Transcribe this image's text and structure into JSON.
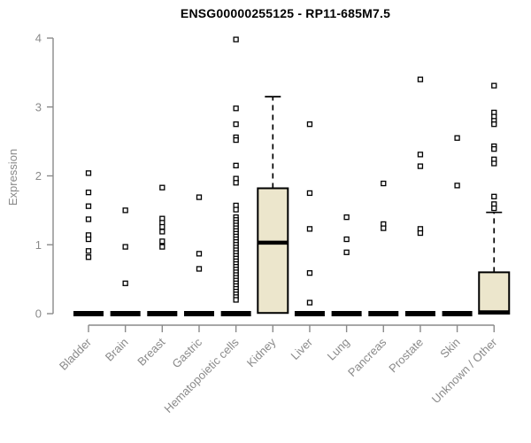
{
  "title": "ENSG00000255125 - RP11-685M7.5",
  "chart_data": {
    "type": "boxplot",
    "title": "ENSG00000255125 - RP11-685M7.5",
    "xlabel": "",
    "ylabel": "Expression",
    "ylim": [
      0,
      4
    ],
    "yticks": [
      0,
      1,
      2,
      3,
      4
    ],
    "grid": false,
    "legend": "none",
    "categories": [
      "Bladder",
      "Brain",
      "Breast",
      "Gastric",
      "Hematopoietic cells",
      "Kidney",
      "Liver",
      "Lung",
      "Pancreas",
      "Prostate",
      "Skin",
      "Unknown / Other"
    ],
    "boxes": [
      {
        "category": "Bladder",
        "whisker_low": 0,
        "q1": 0,
        "median": 0,
        "q3": 0,
        "whisker_high": 0
      },
      {
        "category": "Brain",
        "whisker_low": 0,
        "q1": 0,
        "median": 0,
        "q3": 0,
        "whisker_high": 0
      },
      {
        "category": "Breast",
        "whisker_low": 0,
        "q1": 0,
        "median": 0,
        "q3": 0,
        "whisker_high": 0
      },
      {
        "category": "Gastric",
        "whisker_low": 0,
        "q1": 0,
        "median": 0,
        "q3": 0,
        "whisker_high": 0
      },
      {
        "category": "Hematopoietic cells",
        "whisker_low": 0,
        "q1": 0,
        "median": 0,
        "q3": 0,
        "whisker_high": 0
      },
      {
        "category": "Kidney",
        "whisker_low": 0.01,
        "q1": 0.01,
        "median": 1.03,
        "q3": 1.82,
        "whisker_high": 3.15
      },
      {
        "category": "Liver",
        "whisker_low": 0,
        "q1": 0,
        "median": 0,
        "q3": 0,
        "whisker_high": 0
      },
      {
        "category": "Lung",
        "whisker_low": 0,
        "q1": 0,
        "median": 0,
        "q3": 0,
        "whisker_high": 0
      },
      {
        "category": "Pancreas",
        "whisker_low": 0,
        "q1": 0,
        "median": 0,
        "q3": 0,
        "whisker_high": 0
      },
      {
        "category": "Prostate",
        "whisker_low": 0,
        "q1": 0,
        "median": 0,
        "q3": 0,
        "whisker_high": 0
      },
      {
        "category": "Skin",
        "whisker_low": 0,
        "q1": 0,
        "median": 0,
        "q3": 0,
        "whisker_high": 0
      },
      {
        "category": "Unknown / Other",
        "whisker_low": 0,
        "q1": 0,
        "median": 0.02,
        "q3": 0.6,
        "whisker_high": 1.47
      }
    ],
    "outliers": [
      {
        "category": "Bladder",
        "values": [
          2.04,
          1.76,
          1.56,
          1.37,
          1.14,
          1.08,
          0.91,
          0.82
        ]
      },
      {
        "category": "Brain",
        "values": [
          1.5,
          0.97,
          0.44
        ]
      },
      {
        "category": "Breast",
        "values": [
          1.83,
          1.38,
          1.32,
          1.26,
          1.19,
          1.05,
          0.97
        ]
      },
      {
        "category": "Gastric",
        "values": [
          1.69,
          0.87,
          0.65
        ]
      },
      {
        "category": "Hematopoietic cells",
        "values": [
          3.98,
          2.98,
          2.75,
          2.56,
          2.52,
          2.15,
          1.96,
          1.9,
          1.57,
          1.51,
          1.4,
          1.36,
          1.32,
          1.28,
          1.24,
          1.2,
          1.16,
          1.12,
          1.08,
          1.04,
          1.0,
          0.96,
          0.92,
          0.88,
          0.84,
          0.8,
          0.76,
          0.72,
          0.68,
          0.64,
          0.6,
          0.56,
          0.52,
          0.48,
          0.44,
          0.4,
          0.36,
          0.32,
          0.28,
          0.24,
          0.2
        ]
      },
      {
        "category": "Kidney",
        "values": []
      },
      {
        "category": "Liver",
        "values": [
          2.75,
          1.75,
          1.23,
          0.59,
          0.16
        ]
      },
      {
        "category": "Lung",
        "values": [
          1.4,
          1.08,
          0.89
        ]
      },
      {
        "category": "Pancreas",
        "values": [
          1.89,
          1.3,
          1.24
        ]
      },
      {
        "category": "Prostate",
        "values": [
          3.4,
          2.31,
          2.14,
          1.23,
          1.17
        ]
      },
      {
        "category": "Skin",
        "values": [
          2.55,
          1.86
        ]
      },
      {
        "category": "Unknown / Other",
        "values": [
          3.31,
          2.92,
          2.86,
          2.8,
          2.75,
          2.43,
          2.39,
          2.24,
          2.18,
          1.7,
          1.59,
          1.53
        ]
      }
    ],
    "colors": {
      "box_fill": "#ece6cc",
      "box_border": "#000000",
      "median": "#000000",
      "outlier_stroke": "#000000",
      "outlier_fill": "#ffffff",
      "axis": "#8a8a8a",
      "title_text": "#000000",
      "background": "#ffffff"
    }
  }
}
